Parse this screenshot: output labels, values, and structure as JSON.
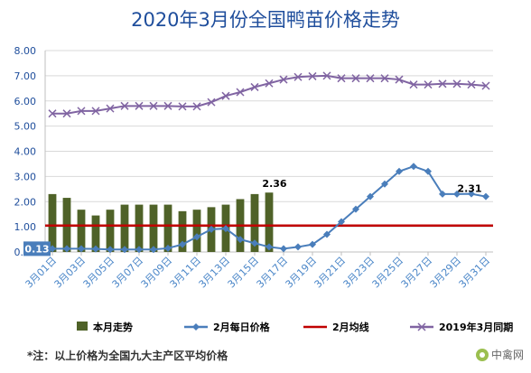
{
  "chart_data": {
    "type": "bar-line",
    "title": "2020年3月份全国鸭苗价格走势",
    "ylim": [
      0,
      8
    ],
    "yticks": [
      "0.00",
      "1.00",
      "2.00",
      "3.00",
      "4.00",
      "5.00",
      "6.00",
      "7.00",
      "8.00"
    ],
    "x_tick_labels": [
      "3月01日",
      "3月03日",
      "3月05日",
      "3月07日",
      "3月09日",
      "3月11日",
      "3月13日",
      "3月15日",
      "3月17日",
      "3月19日",
      "3月21日",
      "3月23日",
      "3月25日",
      "3月27日",
      "3月29日",
      "3月31日"
    ],
    "days": 31,
    "series": [
      {
        "name": "本月走势",
        "type": "bar",
        "color": "#4f6228",
        "values": [
          2.3,
          2.15,
          1.68,
          1.45,
          1.68,
          1.88,
          1.88,
          1.88,
          1.88,
          1.62,
          1.68,
          1.78,
          1.88,
          2.1,
          2.3,
          2.36
        ]
      },
      {
        "name": "2月每日价格",
        "type": "line",
        "marker": "diamond",
        "color": "#4a7ebb",
        "values": [
          0.13,
          0.13,
          0.13,
          0.12,
          0.1,
          0.1,
          0.1,
          0.1,
          0.15,
          0.3,
          0.6,
          0.9,
          0.93,
          0.5,
          0.35,
          0.2,
          0.13,
          0.2,
          0.3,
          0.7,
          1.2,
          1.7,
          2.2,
          2.7,
          3.2,
          3.4,
          3.2,
          2.3,
          2.3,
          2.31,
          2.2
        ]
      },
      {
        "name": "2月均线",
        "type": "line",
        "color": "#c00000",
        "values": [
          1.05,
          1.05
        ]
      },
      {
        "name": "2019年3月同期",
        "type": "line",
        "marker": "x",
        "color": "#8064a2",
        "values": [
          5.5,
          5.5,
          5.6,
          5.6,
          5.7,
          5.8,
          5.8,
          5.8,
          5.8,
          5.78,
          5.78,
          5.95,
          6.2,
          6.35,
          6.55,
          6.7,
          6.85,
          6.95,
          6.98,
          7.0,
          6.9,
          6.9,
          6.9,
          6.9,
          6.85,
          6.65,
          6.65,
          6.68,
          6.68,
          6.65,
          6.6
        ]
      }
    ],
    "data_labels": [
      {
        "series": 0,
        "index": 15,
        "text": "2.36"
      },
      {
        "series": 1,
        "index": 0,
        "text": "0.13"
      },
      {
        "series": 1,
        "index": 29,
        "text": "2.31"
      }
    ],
    "legend_position": "bottom"
  },
  "footnote": "*注：以上价格为全国九大主产区平均价格",
  "watermark": "中禽网",
  "colors": {
    "title": "#1f4e9c",
    "grid": "#d9d9d9",
    "axis_text": "#1f4e9c",
    "xtick_text": "#4a86c8"
  }
}
